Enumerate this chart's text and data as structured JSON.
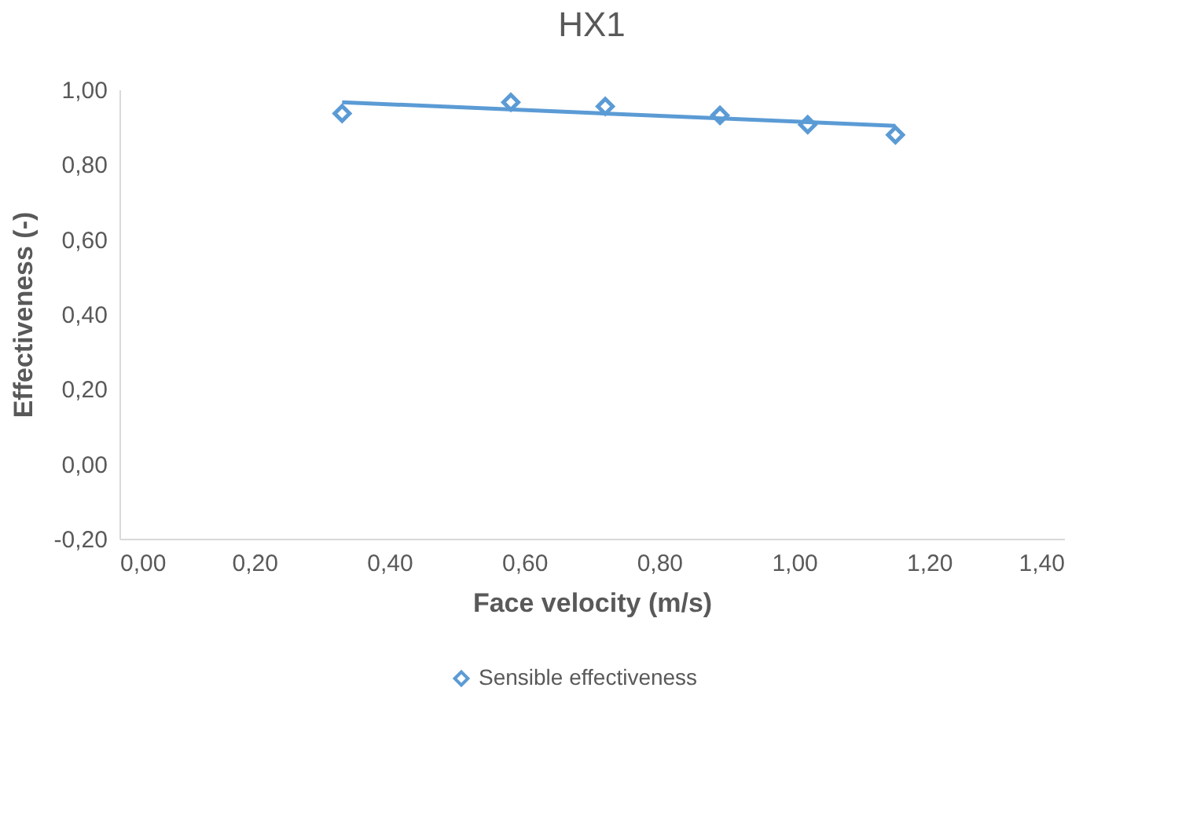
{
  "chart_data": {
    "type": "scatter",
    "title": "HX1",
    "xlabel": "Face velocity (m/s)",
    "ylabel": "Effectiveness (-)",
    "xlim": [
      0,
      1.4
    ],
    "xticks": [
      {
        "value": 0,
        "label": "0,00"
      },
      {
        "value": 0.2,
        "label": "0,20"
      },
      {
        "value": 0.4,
        "label": "0,40"
      },
      {
        "value": 0.6,
        "label": "0,60"
      },
      {
        "value": 0.8,
        "label": "0,80"
      },
      {
        "value": 1.0,
        "label": "1,00"
      },
      {
        "value": 1.2,
        "label": "1,20"
      },
      {
        "value": 1.4,
        "label": "1,40"
      }
    ],
    "ylim": [
      -0.2,
      1.0
    ],
    "yticks": [
      {
        "value": -0.2,
        "label": "-0,20"
      },
      {
        "value": 0,
        "label": "0,00"
      },
      {
        "value": 0.2,
        "label": "0,20"
      },
      {
        "value": 0.4,
        "label": "0,40"
      },
      {
        "value": 0.6,
        "label": "0,60"
      },
      {
        "value": 0.8,
        "label": "0,80"
      },
      {
        "value": 1.0,
        "label": "1,00"
      }
    ],
    "grid": false,
    "legend": "bottom",
    "series": [
      {
        "name": "Sensible effectiveness",
        "marker": "diamond",
        "color": "#5b9bd5",
        "x": [
          0.33,
          0.58,
          0.72,
          0.89,
          1.02,
          1.15
        ],
        "values": [
          0.936,
          0.966,
          0.955,
          0.931,
          0.906,
          0.879
        ]
      },
      {
        "type": "line",
        "color": "#5b9bd5",
        "x": [
          0.33,
          1.15
        ],
        "values": [
          0.966,
          0.903
        ],
        "line_style": "solid"
      }
    ]
  }
}
